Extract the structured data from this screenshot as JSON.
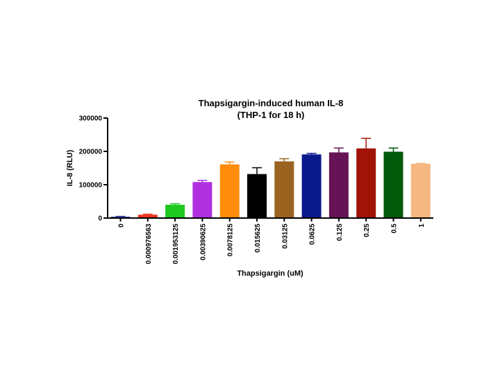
{
  "chart_data": {
    "type": "bar",
    "title": "Thapsigargin-induced human IL-8",
    "subtitle": "(THP-1 for 18 h)",
    "xlabel": "Thapsigargin (uM)",
    "ylabel": "IL-8 (RLU)",
    "ylim": [
      0,
      300000
    ],
    "yticks": [
      0,
      100000,
      200000,
      300000
    ],
    "ytick_labels": [
      "0",
      "100000",
      "200000",
      "300000"
    ],
    "grid": false,
    "legend": "none",
    "categories": [
      "0",
      "0.000976563",
      "0.001953125",
      "0.00390625",
      "0.0078125",
      "0.015625",
      "0.03125",
      "0.0625",
      "0.125",
      "0.25",
      "0.5",
      "1"
    ],
    "values": [
      4000,
      10000,
      40000,
      108000,
      161000,
      132000,
      170000,
      191000,
      197000,
      209000,
      199000,
      163000
    ],
    "errors": [
      1000,
      1500,
      3000,
      5000,
      7000,
      19000,
      8000,
      3000,
      13000,
      30000,
      11000,
      1000
    ],
    "colors": [
      "#2a3a9a",
      "#e8341c",
      "#1ec81e",
      "#b030e0",
      "#ff8c0a",
      "#000000",
      "#9a6420",
      "#0a1a8c",
      "#661456",
      "#a01408",
      "#005a0a",
      "#f4b880"
    ],
    "error_colors": [
      "#2a3a9a",
      "#e8341c",
      "#1ec81e",
      "#b030e0",
      "#ff8c0a",
      "#000000",
      "#9a6420",
      "#0a1a8c",
      "#661456",
      "#a01408",
      "#005a0a",
      "#f4b880"
    ]
  }
}
